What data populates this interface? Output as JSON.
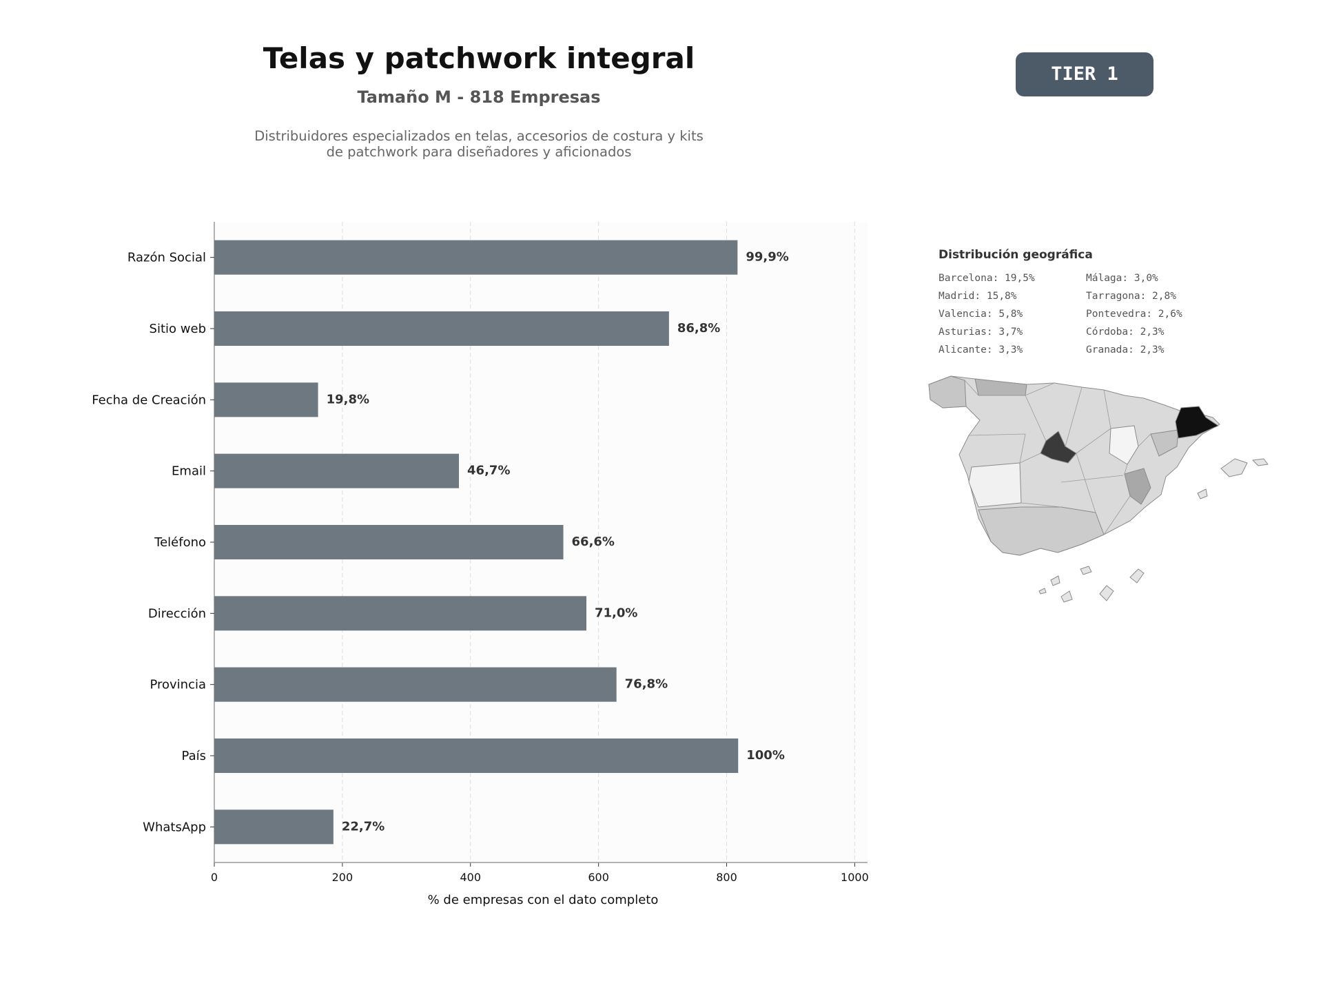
{
  "header": {
    "title": "Telas y patchwork integral",
    "subtitle": "Tamaño M - 818 Empresas",
    "description_lines": [
      "Distribuidores especializados en telas, accesorios de costura y kits",
      "de patchwork para diseñadores y aficionados"
    ],
    "tier": "TIER 1"
  },
  "chart_data": {
    "type": "bar",
    "orientation": "horizontal",
    "title": "",
    "xlabel": "% de empresas con el dato completo",
    "ylabel": "",
    "xlim": [
      0,
      1020
    ],
    "xticks": [
      0,
      200,
      400,
      600,
      800,
      1000
    ],
    "grid": true,
    "categories": [
      "Razón Social",
      "Sitio web",
      "Fecha de Creación",
      "Email",
      "Teléfono",
      "Dirección",
      "Provincia",
      "País",
      "WhatsApp"
    ],
    "values": [
      817,
      710,
      162,
      382,
      545,
      581,
      628,
      818,
      186
    ],
    "labels": [
      "99,9%",
      "86,8%",
      "19,8%",
      "46,7%",
      "66,6%",
      "71,0%",
      "76,8%",
      "100%",
      "22,7%"
    ],
    "bar_color": "#6e7880"
  },
  "geo": {
    "title": "Distribución geográfica",
    "items": [
      {
        "name": "Barcelona",
        "value": "19,5%"
      },
      {
        "name": "Málaga",
        "value": "3,0%"
      },
      {
        "name": "Madrid",
        "value": "15,8%"
      },
      {
        "name": "Tarragona",
        "value": "2,8%"
      },
      {
        "name": "Valencia",
        "value": "5,8%"
      },
      {
        "name": "Pontevedra",
        "value": "2,6%"
      },
      {
        "name": "Asturias",
        "value": "3,7%"
      },
      {
        "name": "Córdoba",
        "value": "2,3%"
      },
      {
        "name": "Alicante",
        "value": "3,3%"
      },
      {
        "name": "Granada",
        "value": "2,3%"
      }
    ]
  }
}
